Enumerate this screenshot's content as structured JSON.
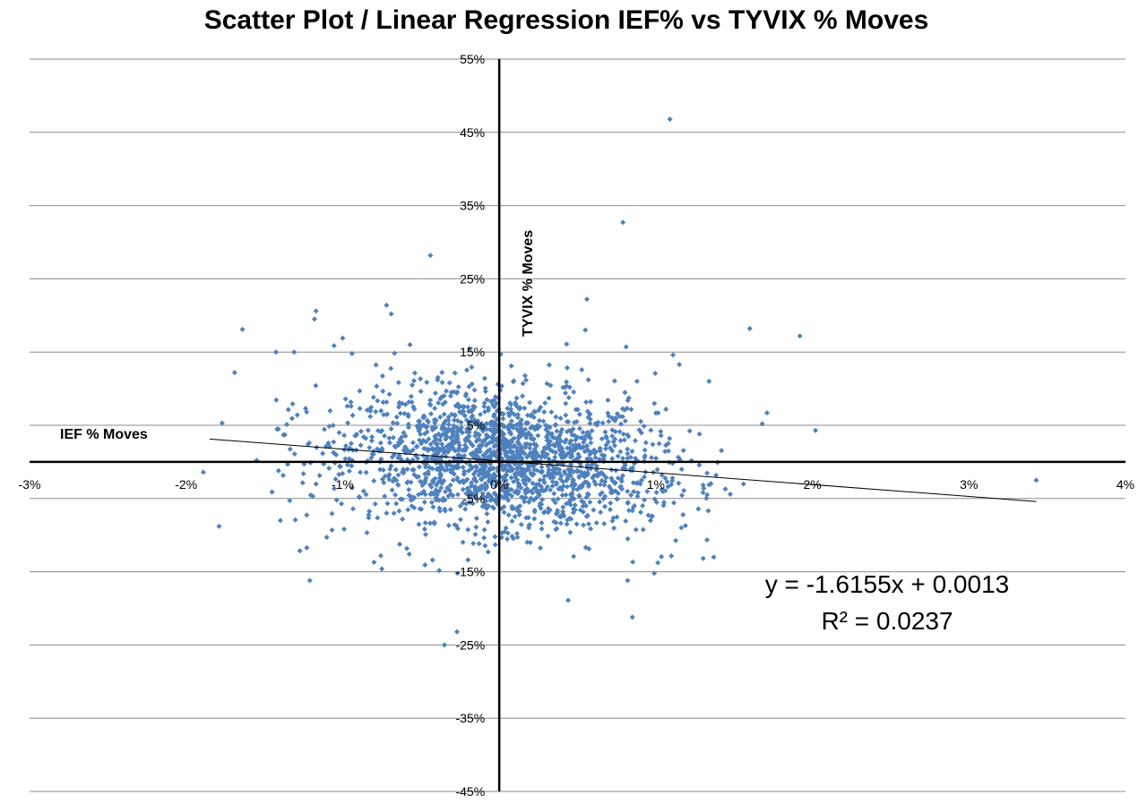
{
  "chart_data": {
    "type": "scatter",
    "title": "Scatter Plot / Linear Regression IEF% vs TYVIX % Moves",
    "xlabel": "IEF % Moves",
    "ylabel": "TYVIX % Moves",
    "xlim": [
      -0.03,
      0.04
    ],
    "ylim": [
      -0.45,
      0.55
    ],
    "x_ticks": [
      -0.03,
      -0.02,
      -0.01,
      0,
      0.01,
      0.02,
      0.03,
      0.04
    ],
    "x_tick_labels": [
      "-3%",
      "-2%",
      "-1%",
      "0%",
      "1%",
      "2%",
      "3%",
      "4%"
    ],
    "y_ticks": [
      0.55,
      0.45,
      0.35,
      0.25,
      0.15,
      0.05,
      -0.05,
      -0.15,
      -0.25,
      -0.35,
      -0.45
    ],
    "y_tick_labels": [
      "55%",
      "45%",
      "35%",
      "25%",
      "15%",
      "5%",
      "-5%",
      "-15%",
      "-25%",
      "-35%",
      "-45%"
    ],
    "grid": "horizontal",
    "marker_color": "#4f81bd",
    "trendline": {
      "slope": -1.6155,
      "intercept": 0.0013,
      "r2": 0.0237,
      "x_range": [
        -0.0185,
        0.0343
      ]
    },
    "equation_text": "y = -1.6155x + 0.0013",
    "r2_text": "R² = 0.0237",
    "series": [
      {
        "outliers": [
          [
            0.0109,
            0.468
          ],
          [
            0.0079,
            0.327
          ],
          [
            -0.0044,
            0.282
          ],
          [
            0.0056,
            0.222
          ],
          [
            -0.0072,
            0.214
          ],
          [
            -0.0069,
            0.202
          ],
          [
            -0.0117,
            0.206
          ],
          [
            -0.0118,
            0.195
          ],
          [
            -0.0164,
            0.181
          ],
          [
            0.0055,
            0.18
          ],
          [
            0.016,
            0.182
          ],
          [
            0.0192,
            0.172
          ],
          [
            -0.01,
            0.169
          ],
          [
            -0.0057,
            0.16
          ],
          [
            0.0043,
            0.161
          ],
          [
            0.0081,
            0.157
          ],
          [
            -0.0131,
            0.15
          ],
          [
            -0.0094,
            0.148
          ],
          [
            0.0111,
            0.146
          ],
          [
            -0.0169,
            0.122
          ],
          [
            0.0171,
            0.067
          ],
          [
            0.0168,
            0.052
          ],
          [
            0.0202,
            0.043
          ],
          [
            -0.0177,
            0.053
          ],
          [
            -0.0189,
            -0.014
          ],
          [
            -0.0179,
            -0.088
          ],
          [
            -0.0121,
            -0.162
          ],
          [
            -0.0075,
            -0.146
          ],
          [
            0.0044,
            -0.189
          ],
          [
            0.0085,
            -0.212
          ],
          [
            -0.0027,
            -0.232
          ],
          [
            -0.0035,
            -0.25
          ],
          [
            0.0082,
            -0.162
          ],
          [
            0.0099,
            -0.152
          ],
          [
            0.0137,
            -0.13
          ],
          [
            0.0156,
            -0.03
          ],
          [
            0.0343,
            -0.025
          ],
          [
            0.0001,
            0.147
          ],
          [
            0.0088,
            0.11
          ],
          [
            0.0134,
            0.11
          ],
          [
            -0.0155,
            0.002
          ],
          [
            -0.008,
            -0.137
          ],
          [
            0.0115,
            0.133
          ],
          [
            -0.0129,
            0.064
          ]
        ],
        "clusters": [
          {
            "cx": 0.0002,
            "cy": 0.004,
            "sx": 0.0048,
            "sy": 0.045,
            "n": 1500
          },
          {
            "cx": 0.0,
            "cy": 0.0,
            "sx": 0.0075,
            "sy": 0.065,
            "n": 420
          }
        ]
      }
    ]
  }
}
